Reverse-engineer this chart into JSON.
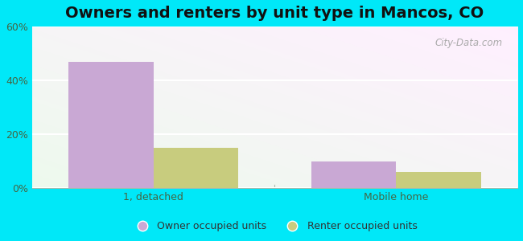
{
  "title": "Owners and renters by unit type in Mancos, CO",
  "categories": [
    "1, detached",
    "Mobile home"
  ],
  "owner_values": [
    47,
    10
  ],
  "renter_values": [
    15,
    6
  ],
  "owner_color": "#c9a8d4",
  "renter_color": "#c8cc7e",
  "ylim": [
    0,
    60
  ],
  "yticks": [
    0,
    20,
    40,
    60
  ],
  "ytick_labels": [
    "0%",
    "20%",
    "40%",
    "60%"
  ],
  "legend_owner": "Owner occupied units",
  "legend_renter": "Renter occupied units",
  "bg_outer": "#00e8f8",
  "title_fontsize": 14,
  "bar_width": 0.35,
  "watermark": "City-Data.com",
  "x_positions": [
    0.5,
    1.5
  ],
  "xlim": [
    0,
    2.0
  ]
}
